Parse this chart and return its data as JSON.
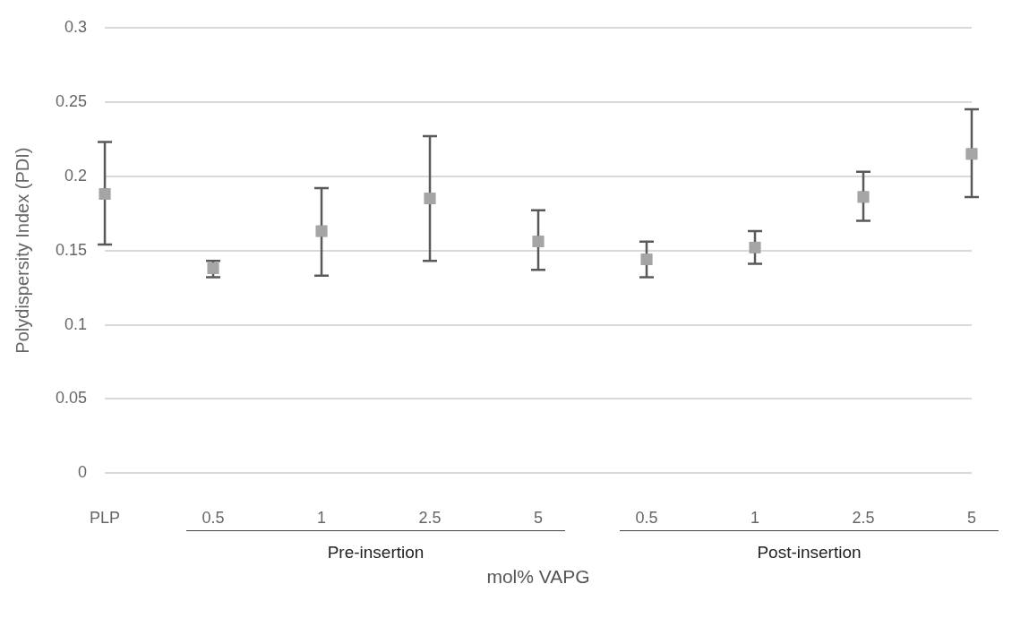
{
  "chart_data": {
    "type": "scatter",
    "xlabel": "mol% VAPG",
    "ylabel": "Polydispersity Index (PDI)",
    "categories": [
      "PLP",
      "0.5",
      "1",
      "2.5",
      "5",
      "0.5",
      "1",
      "2.5",
      "5"
    ],
    "values": [
      0.188,
      0.138,
      0.163,
      0.185,
      0.156,
      0.144,
      0.152,
      0.186,
      0.215
    ],
    "errors": [
      [
        0.154,
        0.223
      ],
      [
        0.132,
        0.143
      ],
      [
        0.133,
        0.192
      ],
      [
        0.143,
        0.227
      ],
      [
        0.137,
        0.177
      ],
      [
        0.132,
        0.156
      ],
      [
        0.141,
        0.163
      ],
      [
        0.17,
        0.203
      ],
      [
        0.186,
        0.245
      ]
    ],
    "color": "#a5a5a5",
    "marker": "square",
    "grid": "y",
    "legend": false,
    "ylim": [
      0,
      0.3
    ],
    "yticks": [
      0,
      0.05,
      0.1,
      0.15,
      0.2,
      0.25,
      0.3
    ],
    "annotations": [
      "Pre-insertion",
      "Post-insertion"
    ]
  }
}
